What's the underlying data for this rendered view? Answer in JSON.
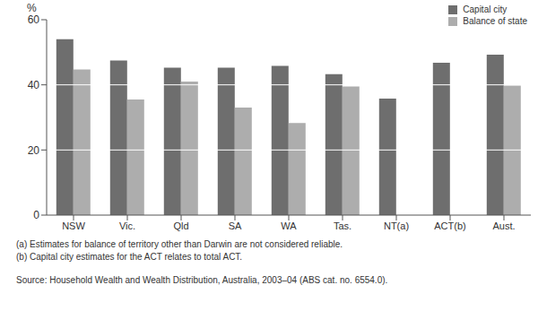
{
  "chart_data": {
    "type": "bar",
    "y_label": "%",
    "categories": [
      "NSW",
      "Vic.",
      "Qld",
      "SA",
      "WA",
      "Tas.",
      "NT(a)",
      "ACT(b)",
      "Aust."
    ],
    "series": [
      {
        "name": "Capital city",
        "color": "#6e6e6e",
        "values": [
          54,
          47.5,
          45.3,
          45.3,
          45.8,
          43.3,
          35.8,
          46.8,
          49.3
        ]
      },
      {
        "name": "Balance of state",
        "color": "#adadad",
        "values": [
          44.7,
          35.5,
          41,
          33,
          28.3,
          39.5,
          null,
          null,
          39.8
        ]
      }
    ],
    "ylim": [
      0,
      60
    ],
    "yticks": [
      0,
      20,
      40,
      60
    ],
    "grid": true,
    "legend": "top-right",
    "notes": [
      "(a) Estimates for balance of territory other than Darwin are not considered reliable.",
      "(b) Capital city estimates for the ACT relates to total ACT.",
      "Source: Household Wealth and Wealth Distribution, Australia, 2003–04 (ABS cat. no. 6554.0)."
    ]
  }
}
